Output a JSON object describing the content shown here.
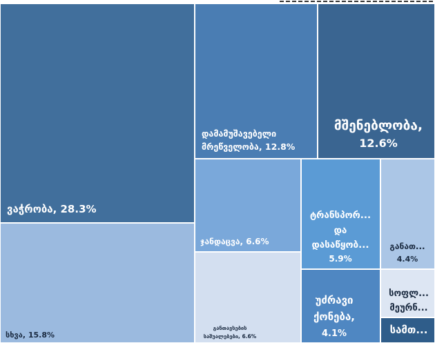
{
  "chart_data": {
    "type": "treemap",
    "categories": [
      "ვაჭრობა",
      "სხვა",
      "დამამუშავებელი მრეწველობა",
      "მშენებლობა",
      "ჯანდაცვა",
      "განთავსების საშუალებები",
      "ტრანსპორ... და დასაწყობ...",
      "განათ...",
      "უძრავი ქონება",
      "სოფლ... მეურნ...",
      "სამთ..."
    ],
    "values": [
      28.3,
      15.8,
      12.8,
      12.6,
      6.6,
      6.6,
      5.9,
      4.4,
      4.1,
      1.6,
      1.3
    ],
    "value_labels": [
      "28.3%",
      "15.8%",
      "12.8%",
      "12.6%",
      "6.6%",
      "6.6%",
      "5.9%",
      "4.4%",
      "4.1%",
      null,
      null
    ],
    "colors": [
      "#416f9c",
      "#9bbadf",
      "#4a7db3",
      "#3a6591",
      "#7aa8da",
      "#d3dff0",
      "#5b9bd5",
      "#abc6e6",
      "#4f87c2",
      "#dde6f3",
      "#2f5d8a"
    ]
  }
}
